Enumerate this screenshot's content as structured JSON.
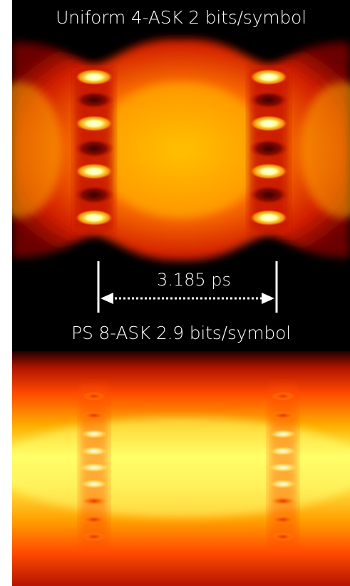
{
  "diagram": {
    "top_panel": {
      "title": "Uniform 4-ASK 2 bits/symbol",
      "eye_levels": 4
    },
    "bottom_panel": {
      "title": "PS 8-ASK 2.9 bits/symbol",
      "eye_levels": 8
    },
    "measurement": {
      "label": "3.185 ps"
    },
    "colormap": [
      "#000000",
      "#5a0000",
      "#c81e00",
      "#ff5a00",
      "#ffb400",
      "#ffff8c",
      "#ffffff"
    ]
  }
}
